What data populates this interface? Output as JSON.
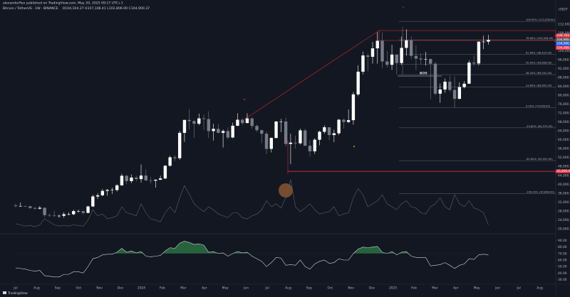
{
  "header": {
    "publisher": "alexanderflex published on TradingView.com, May 20, 2025 09:17 UTC+1",
    "symbol": "Bitcoin / TetherUS · 1W · BINANCE",
    "ohlc": "O104,104.27 H107,108.41 L102,806.00 C104,900.37"
  },
  "watermark": "TradingView",
  "chart_data": {
    "type": "candlestick",
    "currency": "USDT",
    "up_color": "#ffffff",
    "down_color": "#787b86",
    "ylim": [
      19000,
      119000
    ],
    "yticks": [
      {
        "value": 20000,
        "label": "20,000.00"
      },
      {
        "value": 24000,
        "label": "24,000.00"
      },
      {
        "value": 28000,
        "label": "28,000.00"
      },
      {
        "value": 32000,
        "label": "32,000.00"
      },
      {
        "value": 36000,
        "label": "36,000.00"
      },
      {
        "value": 40000,
        "label": "40,000.00"
      },
      {
        "value": 44000,
        "label": "44,000.00"
      },
      {
        "value": 48000,
        "label": "48,000.00"
      },
      {
        "value": 52000,
        "label": "52,000.00"
      },
      {
        "value": 56000,
        "label": "56,000.00"
      },
      {
        "value": 60000,
        "label": "60,000.00"
      },
      {
        "value": 64000,
        "label": "64,000.00"
      },
      {
        "value": 68000,
        "label": "68,000.00"
      },
      {
        "value": 72000,
        "label": "72,000.00"
      },
      {
        "value": 76000,
        "label": "76,000.00"
      },
      {
        "value": 80000,
        "label": "80,000.00"
      },
      {
        "value": 84000,
        "label": "84,000.00"
      },
      {
        "value": 88000,
        "label": "88,000.00"
      },
      {
        "value": 92000,
        "label": "92,000.00"
      },
      {
        "value": 96000,
        "label": "96,000.00"
      },
      {
        "value": 100000,
        "label": "100,000.00"
      },
      {
        "value": 104000,
        "label": "104,000.00"
      },
      {
        "value": 108000,
        "label": "108,000.00"
      },
      {
        "value": 112000,
        "label": "112,000.00"
      }
    ],
    "x_labels": [
      "Jul",
      "Aug",
      "Sep",
      "Oct",
      "Nov",
      "Dec",
      "2024",
      "Feb",
      "Mar",
      "Apr",
      "May",
      "Jun",
      "Jul",
      "Aug",
      "Sep",
      "Oct",
      "Nov",
      "Dec",
      "2025",
      "Feb",
      "Mar",
      "Apr",
      "May",
      "Jun",
      "Jul",
      "Aug"
    ],
    "candles": [
      [
        30500,
        31300,
        29500,
        30200
      ],
      [
        30200,
        31800,
        29900,
        30200
      ],
      [
        30200,
        30400,
        29700,
        30100
      ],
      [
        30100,
        30100,
        29000,
        29300
      ],
      [
        29300,
        29800,
        28600,
        29000
      ],
      [
        29000,
        30200,
        28700,
        29400
      ],
      [
        29400,
        29600,
        25200,
        26100
      ],
      [
        26100,
        26800,
        25300,
        26000
      ],
      [
        26000,
        28100,
        25300,
        25800
      ],
      [
        25800,
        26400,
        24900,
        25800
      ],
      [
        25800,
        27400,
        24900,
        26500
      ],
      [
        26500,
        27400,
        26000,
        26500
      ],
      [
        26500,
        28600,
        26100,
        27900
      ],
      [
        27900,
        28600,
        27200,
        27900
      ],
      [
        27900,
        28000,
        26500,
        27100
      ],
      [
        27100,
        30300,
        26900,
        30000
      ],
      [
        30000,
        35300,
        29700,
        34500
      ],
      [
        34500,
        36000,
        33400,
        35000
      ],
      [
        35000,
        37900,
        34600,
        37000
      ],
      [
        37000,
        37900,
        34800,
        37400
      ],
      [
        37400,
        38500,
        35600,
        37400
      ],
      [
        37400,
        40000,
        36700,
        39500
      ],
      [
        39500,
        44700,
        39300,
        43800
      ],
      [
        43800,
        44100,
        40000,
        41400
      ],
      [
        41400,
        44400,
        40500,
        43000
      ],
      [
        43000,
        43800,
        41300,
        42300
      ],
      [
        42300,
        48900,
        40700,
        43900
      ],
      [
        43900,
        46600,
        41500,
        41700
      ],
      [
        41700,
        43200,
        40300,
        41600
      ],
      [
        41600,
        42200,
        38500,
        42000
      ],
      [
        42000,
        43900,
        41900,
        42600
      ],
      [
        42600,
        48600,
        42300,
        48300
      ],
      [
        48300,
        52800,
        47900,
        52100
      ],
      [
        52100,
        53000,
        50500,
        51700
      ],
      [
        51700,
        64000,
        50900,
        63100
      ],
      [
        63100,
        69000,
        59000,
        68900
      ],
      [
        68900,
        73800,
        64600,
        68400
      ],
      [
        68400,
        68900,
        60800,
        67200
      ],
      [
        67200,
        71700,
        66500,
        69600
      ],
      [
        69600,
        71300,
        64500,
        69300
      ],
      [
        69300,
        72800,
        60700,
        63900
      ],
      [
        63900,
        67200,
        59600,
        64900
      ],
      [
        64900,
        67100,
        62800,
        63100
      ],
      [
        63100,
        64700,
        56500,
        63900
      ],
      [
        63900,
        65500,
        60200,
        61000
      ],
      [
        61000,
        67700,
        60700,
        66300
      ],
      [
        66300,
        71900,
        66100,
        69000
      ],
      [
        69000,
        69600,
        66600,
        67500
      ],
      [
        67500,
        71900,
        67500,
        69600
      ],
      [
        69600,
        70000,
        65000,
        66200
      ],
      [
        66200,
        66900,
        63400,
        64300
      ],
      [
        64300,
        64500,
        58400,
        62700
      ],
      [
        62700,
        63800,
        53500,
        55900
      ],
      [
        55900,
        61000,
        54300,
        60800
      ],
      [
        60800,
        68400,
        60600,
        68200
      ],
      [
        68200,
        69400,
        63400,
        68200
      ],
      [
        68200,
        70000,
        57100,
        58100
      ],
      [
        58100,
        62700,
        49000,
        58700
      ],
      [
        58700,
        61800,
        56100,
        58400
      ],
      [
        58400,
        65000,
        57800,
        64200
      ],
      [
        64200,
        64900,
        57200,
        57300
      ],
      [
        57300,
        59800,
        52500,
        54800
      ],
      [
        54800,
        60700,
        53600,
        60000
      ],
      [
        60000,
        64100,
        57500,
        63600
      ],
      [
        63600,
        66500,
        62700,
        65600
      ],
      [
        65600,
        65600,
        59800,
        62100
      ],
      [
        62100,
        64500,
        58900,
        62900
      ],
      [
        62900,
        69400,
        62100,
        69000
      ],
      [
        69000,
        69500,
        65100,
        68000
      ],
      [
        68000,
        73600,
        67500,
        68800
      ],
      [
        68800,
        81500,
        66800,
        80400
      ],
      [
        80400,
        93500,
        79600,
        90600
      ],
      [
        90600,
        99600,
        89400,
        97900
      ],
      [
        97900,
        98800,
        90800,
        97300
      ],
      [
        97300,
        104000,
        94200,
        101100
      ],
      [
        101100,
        108400,
        94200,
        104500
      ],
      [
        104500,
        108300,
        92200,
        95200
      ],
      [
        95200,
        99900,
        92500,
        93700
      ],
      [
        93700,
        102700,
        91400,
        98300
      ],
      [
        98300,
        98300,
        89300,
        94500
      ],
      [
        94500,
        106400,
        93700,
        101300
      ],
      [
        101300,
        109600,
        97800,
        104700
      ],
      [
        104700,
        106500,
        96200,
        97700
      ],
      [
        97700,
        102500,
        91200,
        96500
      ],
      [
        96500,
        98800,
        94100,
        96100
      ],
      [
        96100,
        99500,
        93400,
        96300
      ],
      [
        96300,
        96500,
        78200,
        94200
      ],
      [
        94200,
        95000,
        80000,
        80700
      ],
      [
        80700,
        85300,
        76600,
        82600
      ],
      [
        82600,
        87500,
        81200,
        86100
      ],
      [
        86100,
        88800,
        81600,
        82400
      ],
      [
        82400,
        88500,
        74500,
        78400
      ],
      [
        78400,
        85800,
        78200,
        83700
      ],
      [
        83700,
        86400,
        83100,
        85200
      ],
      [
        85200,
        95700,
        85100,
        94700
      ],
      [
        94700,
        97900,
        93300,
        94300
      ],
      [
        94300,
        104300,
        93400,
        104100
      ],
      [
        104100,
        106800,
        100700,
        104100
      ],
      [
        104104.27,
        107108.41,
        102806,
        104900.37
      ]
    ],
    "overlay": {
      "color": "#5d606b",
      "ylim": [
        0,
        100
      ],
      "values": [
        12,
        10,
        8,
        9,
        7,
        10,
        20,
        15,
        10,
        8,
        9,
        8,
        10,
        9,
        8,
        18,
        35,
        25,
        28,
        20,
        22,
        25,
        40,
        30,
        28,
        25,
        45,
        30,
        20,
        18,
        15,
        30,
        40,
        30,
        55,
        75,
        60,
        45,
        38,
        32,
        40,
        35,
        28,
        25,
        22,
        30,
        30,
        22,
        20,
        25,
        28,
        35,
        50,
        40,
        45,
        38,
        55,
        85,
        40,
        32,
        38,
        45,
        35,
        28,
        30,
        32,
        40,
        25,
        28,
        30,
        55,
        70,
        60,
        40,
        45,
        50,
        60,
        45,
        40,
        35,
        45,
        50,
        40,
        38,
        30,
        28,
        40,
        45,
        55,
        40,
        35,
        60,
        45,
        40,
        50,
        38,
        35,
        30,
        10
      ]
    },
    "rsi": {
      "color": "#d1d4dc",
      "fill_color": "#2e7d46",
      "overbought": 70,
      "ylim": [
        25,
        95
      ],
      "yticks": [
        {
          "value": 30,
          "label": "30.00"
        },
        {
          "value": 40,
          "label": "40.00"
        },
        {
          "value": 50,
          "label": "50.00"
        },
        {
          "value": 60,
          "label": "60.00"
        },
        {
          "value": 70,
          "label": "70.00"
        },
        {
          "value": 80,
          "label": "80.00"
        },
        {
          "value": 90,
          "label": "90.00"
        }
      ],
      "values": [
        48,
        47,
        46,
        44,
        43,
        44,
        36,
        35,
        34,
        34,
        38,
        38,
        42,
        42,
        40,
        50,
        62,
        64,
        68,
        69,
        69,
        72,
        78,
        72,
        74,
        71,
        73,
        66,
        65,
        66,
        67,
        74,
        79,
        78,
        86,
        89,
        87,
        84,
        85,
        83,
        72,
        73,
        70,
        71,
        66,
        70,
        73,
        71,
        72,
        66,
        62,
        58,
        50,
        56,
        64,
        63,
        52,
        53,
        52,
        60,
        50,
        46,
        54,
        58,
        60,
        55,
        56,
        62,
        60,
        60,
        70,
        77,
        80,
        79,
        80,
        81,
        72,
        70,
        73,
        68,
        72,
        73,
        66,
        64,
        64,
        64,
        51,
        52,
        53,
        56,
        52,
        47,
        52,
        54,
        62,
        61,
        68,
        69,
        68
      ]
    },
    "fib_levels": [
      {
        "level": "100.00%",
        "price": {
          "value": 113208,
          "label": "(113,208.00)"
        }
      },
      {
        "level": "78.60%",
        "price": {
          "value": 104926,
          "label": "(104,926.00)"
        }
      },
      {
        "level": "61.80%",
        "price": {
          "value": 98425,
          "label": "(98,425.00)"
        }
      },
      {
        "level": "50.00%",
        "price": {
          "value": 93858,
          "label": "(93,858.00)"
        }
      },
      {
        "level": "38.20%",
        "price": {
          "value": 89291,
          "label": "(89,291.00)"
        }
      },
      {
        "level": "23.60%",
        "price": {
          "value": 83641,
          "label": "(83,641.00)"
        }
      },
      {
        "level": "0.00%",
        "price": {
          "value": 74508,
          "label": "(74,508.00)"
        }
      },
      {
        "level": "-23.60%",
        "price": {
          "value": 65375,
          "label": "(65,375.00)"
        }
      },
      {
        "level": "-61.80%",
        "price": {
          "value": 50591,
          "label": "(50,591.00)"
        }
      },
      {
        "level": "-100.00%",
        "price": {
          "value": 35808,
          "label": "(35,808.00)"
        }
      }
    ],
    "price_tags": [
      {
        "label": "106,783.00",
        "value": 106783,
        "color": "#f23645"
      },
      {
        "label": "104,900.37",
        "value": 104900.37,
        "color": "#5d606b"
      },
      {
        "label": "104,900.16",
        "value": 104900.16,
        "color": "#2962ff"
      },
      {
        "label": "104,088.00",
        "value": 104088,
        "color": "#f23645"
      },
      {
        "label": "45,800.00",
        "value": 45800,
        "color": "#f23645"
      }
    ],
    "annotation": "BOS"
  }
}
